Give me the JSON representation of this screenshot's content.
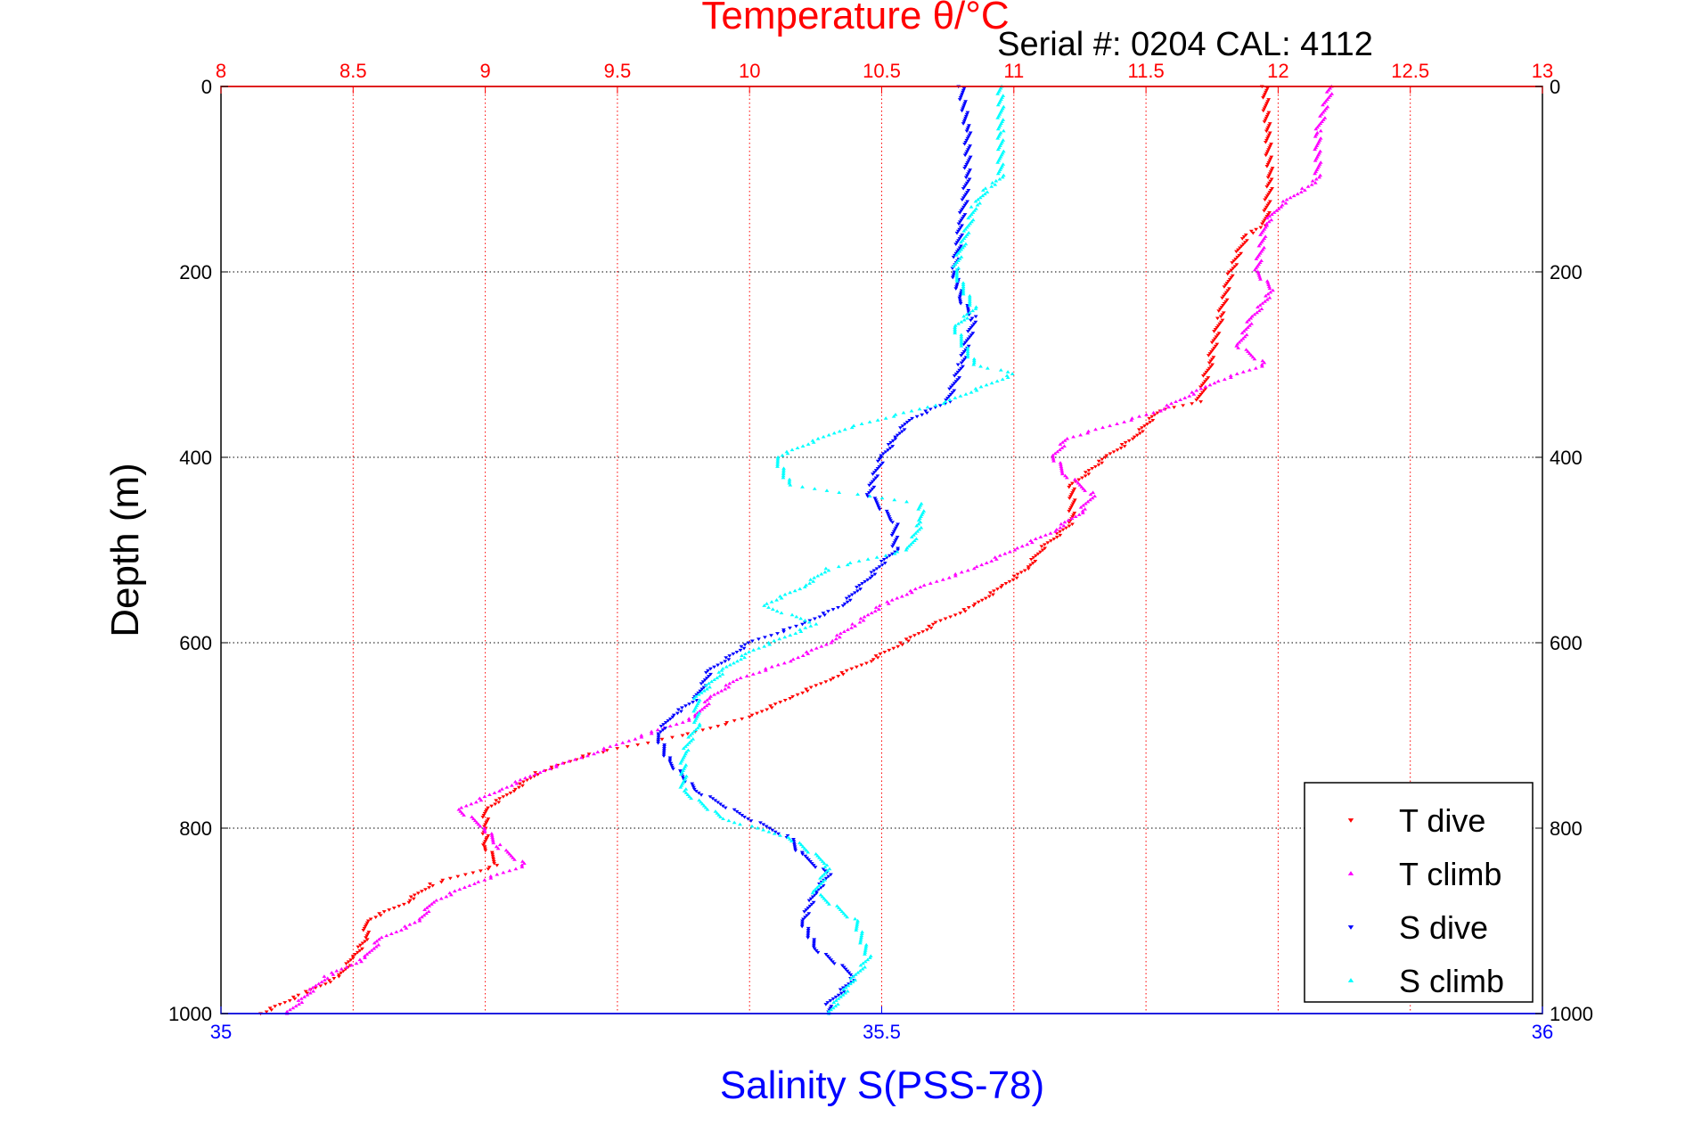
{
  "chart_data": {
    "type": "scatter",
    "title": "Temperature θ/°C",
    "subtitle": "Serial #: 0204  CAL: 4112",
    "xlabel": "Salinity S(PSS-78)",
    "ylabel": "Depth (m)",
    "x_top": {
      "lim": [
        8,
        13
      ],
      "ticks": [
        "8",
        "8.5",
        "9",
        "9.5",
        "10",
        "10.5",
        "11",
        "11.5",
        "12",
        "12.5",
        "13"
      ],
      "color": "#ff0000"
    },
    "x_bottom": {
      "lim": [
        35,
        36
      ],
      "ticks": [
        "35",
        "35.5",
        "36"
      ],
      "color": "#0000ff"
    },
    "ylim": [
      0,
      1000
    ],
    "yticks": [
      "0",
      "200",
      "400",
      "600",
      "800",
      "1000"
    ],
    "grid": true,
    "legend_position": "bottom-right",
    "series": [
      {
        "name": "T dive",
        "axis": "top",
        "color": "#ff0000",
        "marker": "triangle-down",
        "depth": [
          0,
          50,
          100,
          150,
          160,
          200,
          250,
          300,
          340,
          350,
          380,
          400,
          430,
          470,
          500,
          520,
          540,
          560,
          580,
          600,
          620,
          640,
          660,
          680,
          700,
          720,
          740,
          760,
          780,
          800,
          820,
          840,
          860,
          880,
          900,
          920,
          940,
          960,
          980,
          1000
        ],
        "values": [
          11.95,
          11.96,
          11.97,
          11.95,
          11.88,
          11.82,
          11.78,
          11.74,
          11.7,
          11.55,
          11.45,
          11.35,
          11.22,
          11.22,
          11.1,
          11.05,
          10.95,
          10.85,
          10.7,
          10.58,
          10.45,
          10.3,
          10.15,
          10.0,
          9.75,
          9.4,
          9.2,
          9.1,
          9.0,
          9.0,
          9.0,
          9.05,
          8.8,
          8.7,
          8.55,
          8.55,
          8.5,
          8.45,
          8.3,
          8.15
        ]
      },
      {
        "name": "T climb",
        "axis": "top",
        "color": "#ff00ff",
        "marker": "triangle-up",
        "depth": [
          0,
          50,
          100,
          110,
          130,
          150,
          200,
          220,
          250,
          280,
          300,
          320,
          350,
          380,
          400,
          420,
          440,
          460,
          480,
          500,
          520,
          540,
          560,
          580,
          600,
          620,
          640,
          660,
          680,
          700,
          720,
          740,
          760,
          780,
          800,
          820,
          840,
          860,
          880,
          900,
          920,
          940,
          960,
          1000
        ],
        "values": [
          12.2,
          12.15,
          12.15,
          12.1,
          12.0,
          11.95,
          11.92,
          11.98,
          11.9,
          11.85,
          11.95,
          11.75,
          11.55,
          11.2,
          11.15,
          11.2,
          11.3,
          11.25,
          11.15,
          11.0,
          10.85,
          10.65,
          10.5,
          10.4,
          10.3,
          10.15,
          9.95,
          9.85,
          9.8,
          9.6,
          9.4,
          9.2,
          9.05,
          8.9,
          9.0,
          9.05,
          9.15,
          8.95,
          8.8,
          8.75,
          8.6,
          8.55,
          8.4,
          8.25
        ]
      },
      {
        "name": "S dive",
        "axis": "bottom",
        "color": "#0000ff",
        "marker": "triangle-down",
        "depth": [
          0,
          50,
          100,
          150,
          200,
          230,
          250,
          300,
          340,
          360,
          380,
          400,
          440,
          470,
          500,
          530,
          560,
          580,
          600,
          630,
          660,
          680,
          700,
          730,
          760,
          790,
          810,
          830,
          850,
          870,
          900,
          930,
          960,
          990,
          1000
        ],
        "values": [
          35.56,
          35.565,
          35.565,
          35.56,
          35.555,
          35.56,
          35.57,
          35.56,
          35.55,
          35.52,
          35.51,
          35.5,
          35.49,
          35.51,
          35.51,
          35.49,
          35.47,
          35.44,
          35.4,
          35.37,
          35.36,
          35.34,
          35.33,
          35.34,
          35.36,
          35.4,
          35.43,
          35.44,
          35.46,
          35.45,
          35.44,
          35.45,
          35.48,
          35.46,
          35.46
        ]
      },
      {
        "name": "S climb",
        "axis": "bottom",
        "color": "#00ffff",
        "marker": "triangle-up",
        "depth": [
          0,
          50,
          100,
          110,
          130,
          200,
          240,
          260,
          300,
          310,
          340,
          370,
          400,
          430,
          450,
          470,
          500,
          520,
          540,
          560,
          580,
          610,
          630,
          660,
          690,
          720,
          760,
          790,
          810,
          840,
          870,
          900,
          940,
          1000
        ],
        "values": [
          35.59,
          35.59,
          35.59,
          35.58,
          35.57,
          35.555,
          35.57,
          35.555,
          35.57,
          35.6,
          35.55,
          35.47,
          35.42,
          35.43,
          35.53,
          35.53,
          35.52,
          35.46,
          35.44,
          35.41,
          35.45,
          35.4,
          35.38,
          35.36,
          35.36,
          35.35,
          35.35,
          35.38,
          35.43,
          35.46,
          35.45,
          35.48,
          35.49,
          35.46
        ]
      }
    ]
  }
}
